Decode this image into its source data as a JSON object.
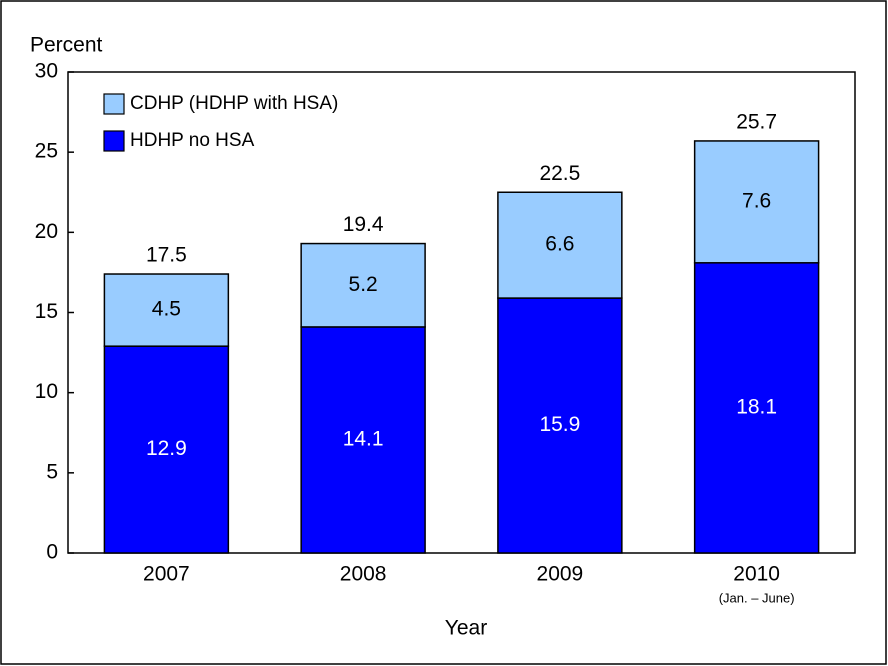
{
  "chart_data": {
    "type": "stacked_bar",
    "y_label": "Percent",
    "x_label": "Year",
    "categories": [
      "2007",
      "2008",
      "2009",
      "2010"
    ],
    "category_notes": [
      null,
      null,
      null,
      "(Jan. – June)"
    ],
    "series": [
      {
        "name": "HDHP no HSA",
        "color": "#0000ff",
        "label_color": "#ffffff",
        "values": [
          12.9,
          14.1,
          15.9,
          18.1
        ]
      },
      {
        "name": "CDHP (HDHP with HSA)",
        "color": "#99ccff",
        "label_color": "#000000",
        "values": [
          4.5,
          5.2,
          6.6,
          7.6
        ]
      }
    ],
    "totals": [
      17.5,
      19.4,
      22.5,
      25.7
    ],
    "ylim": [
      0,
      30
    ],
    "yticks": [
      0,
      5,
      10,
      15,
      20,
      25,
      30
    ],
    "legend": "upper left",
    "grid": false
  }
}
